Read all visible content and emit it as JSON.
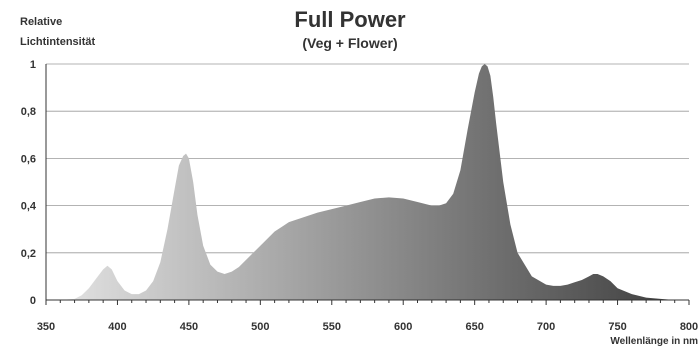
{
  "chart_data": {
    "type": "area",
    "title": "Full Power",
    "subtitle": "(Veg + Flower)",
    "ylabel": [
      "Relative",
      "Lichtintensität"
    ],
    "xlabel": "Wellenlänge in nm",
    "xlim": [
      350,
      800
    ],
    "ylim": [
      0,
      1
    ],
    "xticks": [
      "350",
      "400",
      "450",
      "500",
      "550",
      "600",
      "650",
      "700",
      "750",
      "800"
    ],
    "yticks": [
      "0",
      "0,2",
      "0,4",
      "0,6",
      "0,8",
      "1"
    ],
    "grid": true,
    "gradient": [
      "#e6e6e6",
      "#3c3c3c"
    ],
    "series": [
      {
        "x": [
          350,
          360,
          370,
          375,
          380,
          385,
          390,
          393,
          396,
          400,
          405,
          410,
          415,
          420,
          425,
          430,
          435,
          440,
          443,
          446,
          448,
          450,
          453,
          456,
          460,
          465,
          470,
          475,
          480,
          485,
          490,
          495,
          500,
          505,
          510,
          515,
          520,
          530,
          540,
          550,
          560,
          570,
          580,
          590,
          600,
          610,
          620,
          625,
          630,
          635,
          640,
          645,
          650,
          653,
          655,
          657,
          659,
          661,
          663,
          665,
          670,
          675,
          680,
          690,
          700,
          705,
          710,
          715,
          720,
          725,
          730,
          733,
          736,
          740,
          745,
          750,
          760,
          770,
          780,
          790,
          800
        ],
        "y": [
          0,
          0,
          0.005,
          0.02,
          0.05,
          0.09,
          0.13,
          0.145,
          0.13,
          0.08,
          0.04,
          0.025,
          0.025,
          0.04,
          0.08,
          0.16,
          0.3,
          0.47,
          0.57,
          0.61,
          0.62,
          0.6,
          0.5,
          0.36,
          0.23,
          0.15,
          0.12,
          0.11,
          0.12,
          0.14,
          0.17,
          0.2,
          0.23,
          0.26,
          0.29,
          0.31,
          0.33,
          0.35,
          0.37,
          0.385,
          0.4,
          0.415,
          0.43,
          0.435,
          0.43,
          0.415,
          0.4,
          0.4,
          0.41,
          0.45,
          0.55,
          0.72,
          0.88,
          0.96,
          0.99,
          1,
          0.99,
          0.95,
          0.86,
          0.75,
          0.5,
          0.32,
          0.2,
          0.1,
          0.065,
          0.06,
          0.06,
          0.065,
          0.075,
          0.085,
          0.1,
          0.11,
          0.11,
          0.1,
          0.08,
          0.05,
          0.025,
          0.01,
          0.005,
          0,
          0
        ]
      }
    ]
  }
}
